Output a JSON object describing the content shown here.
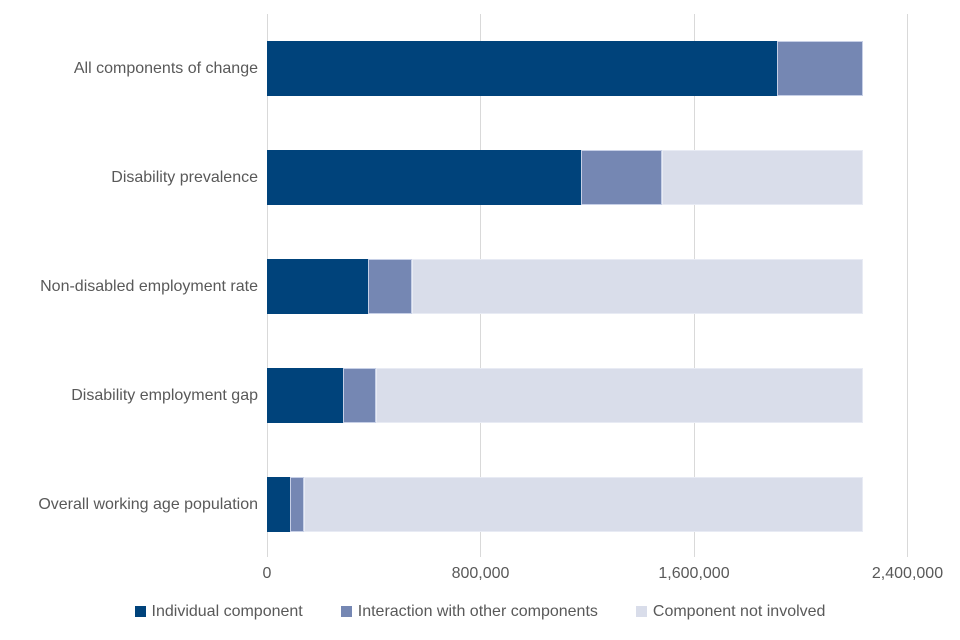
{
  "chart_data": {
    "type": "bar",
    "orientation": "horizontal",
    "stacked": true,
    "title": "",
    "xlabel": "",
    "ylabel": "",
    "categories": [
      "All components of change",
      "Disability prevalence",
      "Non-disabled employment rate",
      "Disability employment gap",
      "Overall working age population"
    ],
    "series": [
      {
        "name": "Individual component",
        "color": "#00437B",
        "values": [
          1910000,
          1175000,
          380000,
          285000,
          85000
        ]
      },
      {
        "name": "Interaction with other components",
        "color": "#7587B3",
        "values": [
          325000,
          305000,
          165000,
          125000,
          55000
        ]
      },
      {
        "name": "Component not involved",
        "color": "#D9DDEA",
        "values": [
          0,
          755000,
          1690000,
          1825000,
          2095000
        ]
      }
    ],
    "bar_total": 2235000,
    "xlim": [
      0,
      2400000
    ],
    "x_ticks": [
      0,
      800000,
      1600000,
      2400000
    ],
    "x_tick_labels": [
      "0",
      "800,000",
      "1,600,000",
      "2,400,000"
    ],
    "grid": true,
    "legend_position": "bottom"
  },
  "styles": {
    "background": "#FFFFFF",
    "gridline_color": "#D9D9D9",
    "text_color": "#595959",
    "interaction_segment_border": "#C6CFE6"
  }
}
